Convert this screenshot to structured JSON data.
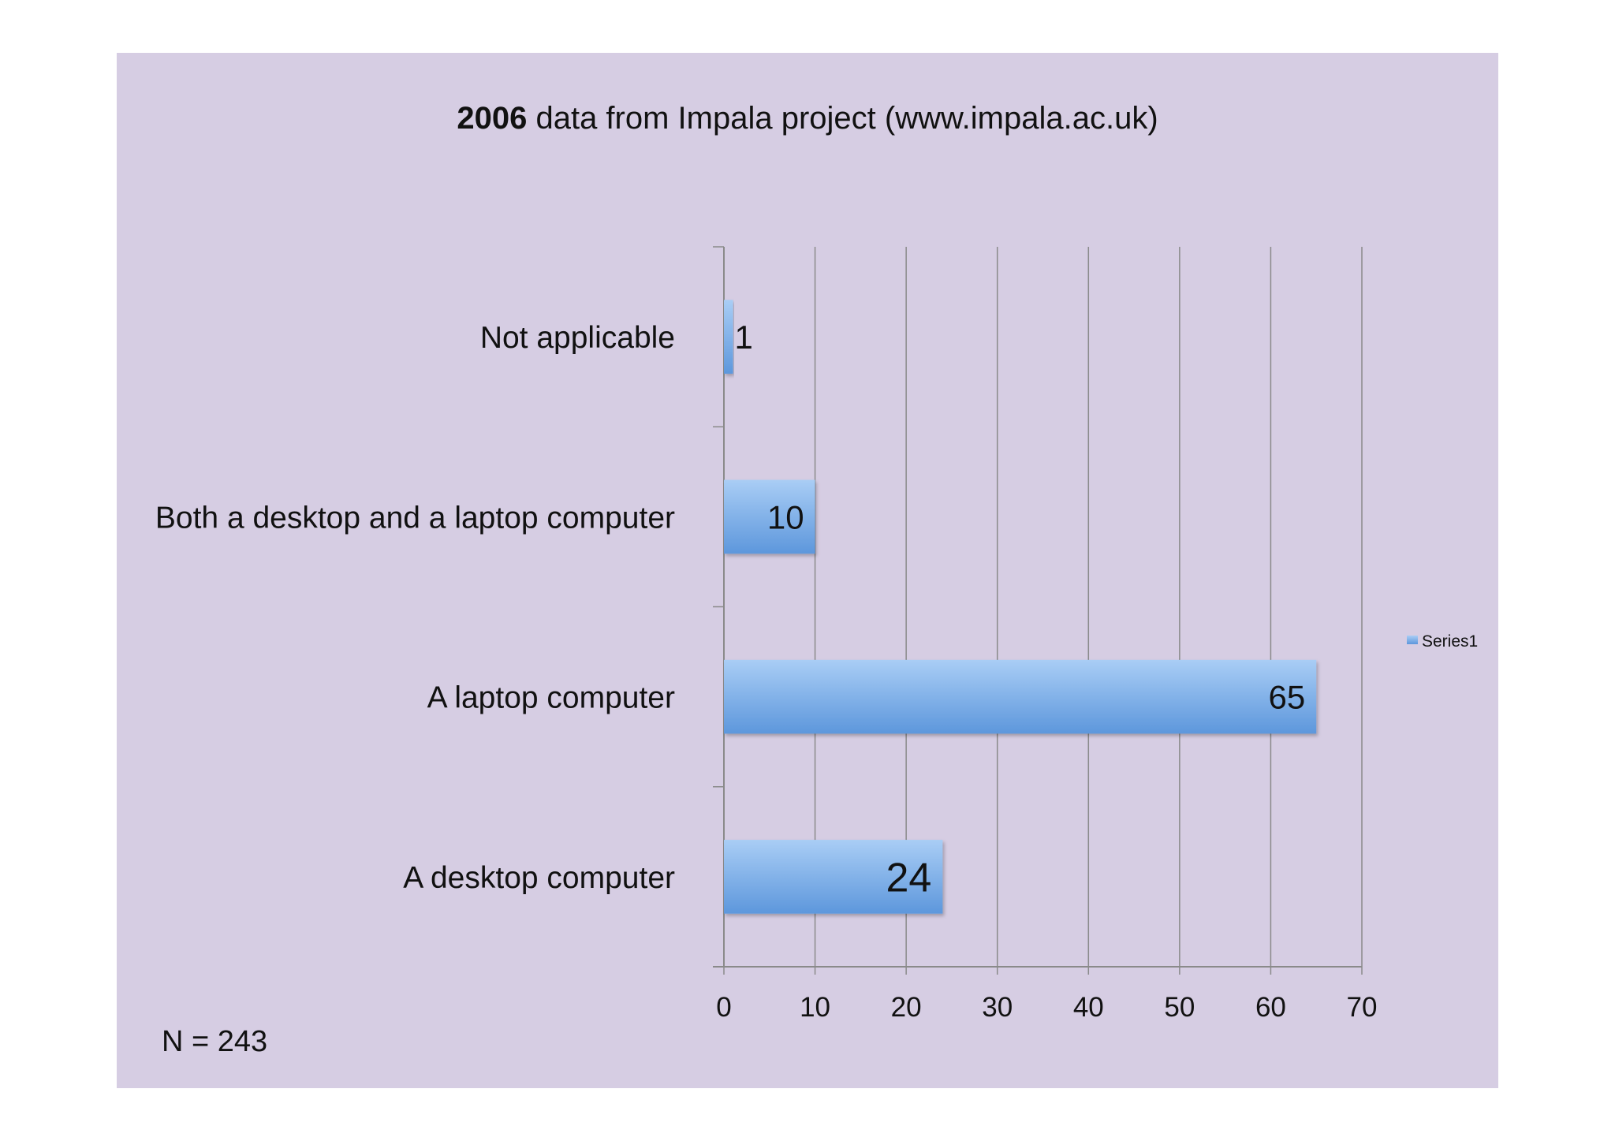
{
  "title": {
    "bold": "2006",
    "rest": " data from Impala project (www.impala.ac.uk)"
  },
  "note": "N = 243",
  "chart_data": {
    "type": "bar",
    "orientation": "horizontal",
    "categories": [
      "Not applicable",
      "Both a desktop and a laptop computer",
      "A laptop computer",
      "A desktop computer"
    ],
    "series": [
      {
        "name": "Series1",
        "values": [
          1,
          10,
          65,
          24
        ]
      }
    ],
    "xlim": [
      0,
      70
    ],
    "xticks": [
      0,
      10,
      20,
      30,
      40,
      50,
      60,
      70
    ],
    "grid": "vertical",
    "legend": "right",
    "colors": {
      "bar_top": "#a9cdf5",
      "bar_bottom": "#5d97dc",
      "grid": "#8a8a8a",
      "background": "#d6cde3"
    }
  }
}
